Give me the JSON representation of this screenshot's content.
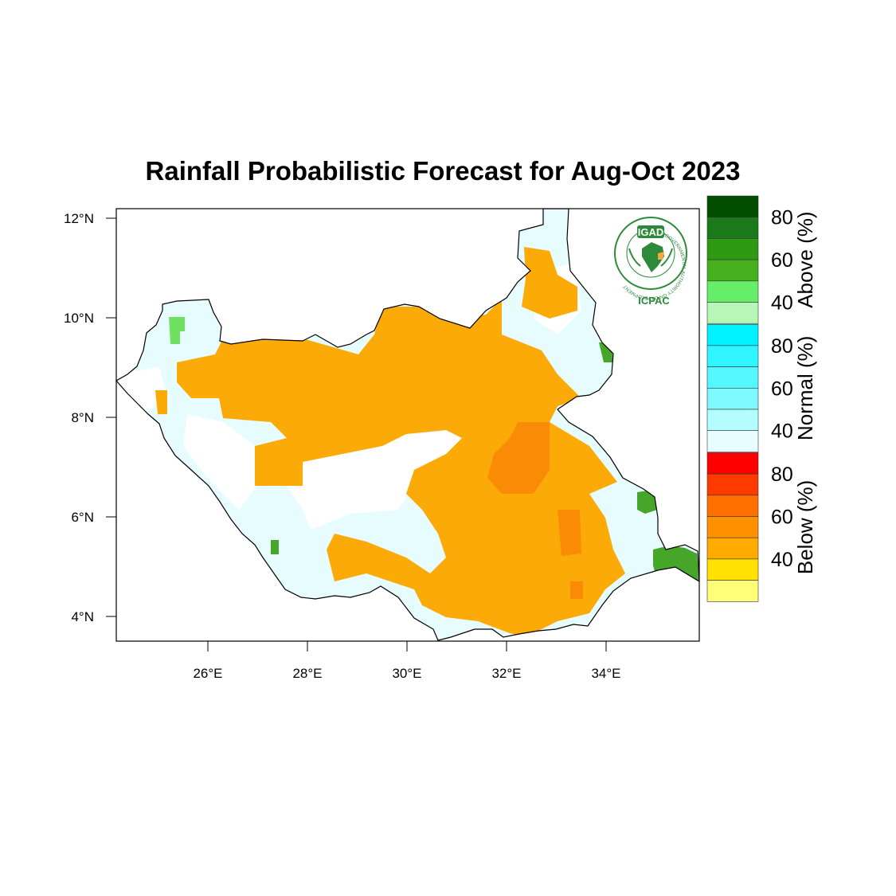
{
  "title": "Rainfall Probabilistic Forecast for Aug-Oct 2023",
  "map": {
    "lat_ticks": [
      "12°N",
      "10°N",
      "8°N",
      "6°N",
      "4°N"
    ],
    "lon_ticks": [
      "26°E",
      "28°E",
      "30°E",
      "32°E",
      "34°E"
    ],
    "lon_range": [
      24.2,
      35.9
    ],
    "lat_range": [
      3.5,
      12.2
    ]
  },
  "logo": {
    "name": "IGAD",
    "org": "ICPAC",
    "ring_text": "INTERGOVERNMENTAL AUTHORITY ON DEVELOPMENT"
  },
  "colorbar": {
    "groups": [
      {
        "category": "Above (%)",
        "colors": [
          "#004d00",
          "#1a7a1a",
          "#2d9a14",
          "#46b01e",
          "#66ee66",
          "#b8f6b8"
        ],
        "labels": [
          "80",
          "60",
          "40"
        ]
      },
      {
        "category": "Normal (%)",
        "colors": [
          "#00f2ff",
          "#2ef5ff",
          "#55f7ff",
          "#7ef9ff",
          "#b3fcff",
          "#e8fdff"
        ],
        "labels": [
          "80",
          "60",
          "40"
        ]
      },
      {
        "category": "Below (%)",
        "colors": [
          "#ff0000",
          "#ff3a00",
          "#ff7000",
          "#ff9000",
          "#ffab00",
          "#ffe000",
          "#ffff77"
        ],
        "labels": [
          "80",
          "60",
          "40"
        ]
      }
    ]
  },
  "legend_colors": {
    "below_40": "#fcaa08",
    "below_50": "#fa8c05",
    "normal_35": "#e6fcfe",
    "above_40": "#46a62a",
    "above_45": "#6fe060",
    "map_white": "#ffffff"
  }
}
